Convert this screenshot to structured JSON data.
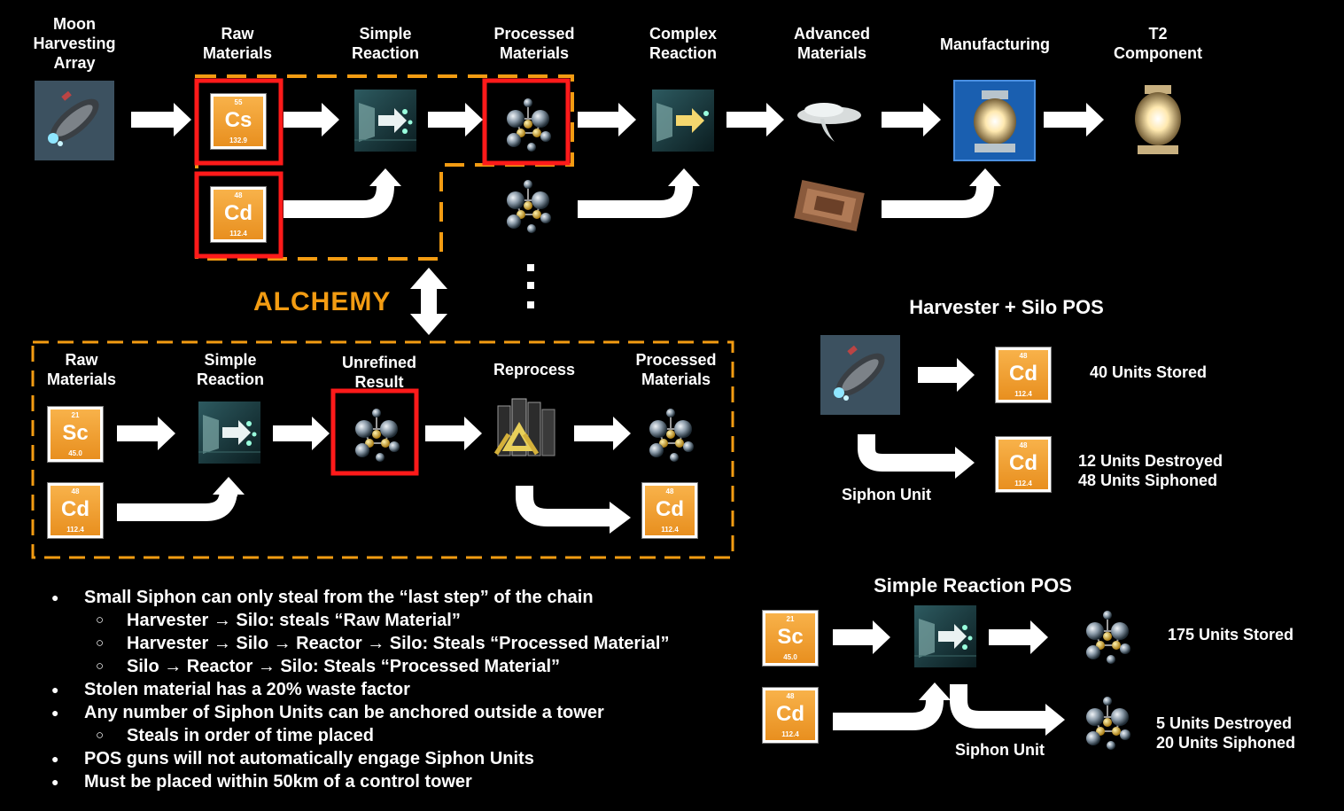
{
  "top_chain": {
    "stages": [
      {
        "label": "Moon\nHarvesting\nArray"
      },
      {
        "label": "Raw\nMaterials"
      },
      {
        "label": "Simple\nReaction"
      },
      {
        "label": "Processed\nMaterials"
      },
      {
        "label": "Complex\nReaction"
      },
      {
        "label": "Advanced\nMaterials"
      },
      {
        "label": "Manufacturing"
      },
      {
        "label": "T2\nComponent"
      }
    ],
    "elements": [
      {
        "num": "55",
        "sym": "Cs",
        "mass": "132.9"
      },
      {
        "num": "48",
        "sym": "Cd",
        "mass": "112.4"
      }
    ]
  },
  "alchemy": {
    "title": "ALCHEMY",
    "stages": [
      {
        "label": "Raw\nMaterials"
      },
      {
        "label": "Simple\nReaction"
      },
      {
        "label": "Unrefined\nResult"
      },
      {
        "label": "Reprocess"
      },
      {
        "label": "Processed\nMaterials"
      }
    ],
    "elements": [
      {
        "num": "21",
        "sym": "Sc",
        "mass": "45.0"
      },
      {
        "num": "48",
        "sym": "Cd",
        "mass": "112.4"
      },
      {
        "num": "48",
        "sym": "Cd",
        "mass": "112.4"
      }
    ]
  },
  "harvester_silo": {
    "title": "Harvester + Silo POS",
    "elements": [
      {
        "num": "48",
        "sym": "Cd",
        "mass": "112.4"
      },
      {
        "num": "48",
        "sym": "Cd",
        "mass": "112.4"
      }
    ],
    "stored": "40 Units Stored",
    "destroyed": "12 Units Destroyed",
    "siphoned": "48 Units Siphoned",
    "siphon_label": "Siphon Unit"
  },
  "simple_reaction": {
    "title": "Simple Reaction POS",
    "elements": [
      {
        "num": "21",
        "sym": "Sc",
        "mass": "45.0"
      },
      {
        "num": "48",
        "sym": "Cd",
        "mass": "112.4"
      }
    ],
    "stored": "175 Units Stored",
    "destroyed": "5 Units Destroyed",
    "siphoned": "20 Units Siphoned",
    "siphon_label": "Siphon Unit"
  },
  "notes": [
    "Small Siphon can only steal from the “last step” of the chain",
    "Harvester → Silo: steals “Raw Material”",
    "Harvester → Silo → Reactor → Silo: Steals “Processed Material”",
    "Silo → Reactor → Silo: Steals “Processed Material”",
    "Stolen material has a 20% waste factor",
    "Any number of Siphon Units can be anchored outside a tower",
    "Steals in order of time placed",
    "POS guns will not automatically engage Siphon Units",
    "Must be placed within 50km of a control tower"
  ],
  "colors": {
    "orange": "#f39c12",
    "red": "#ff1a1a",
    "element": "#f5a33a"
  }
}
